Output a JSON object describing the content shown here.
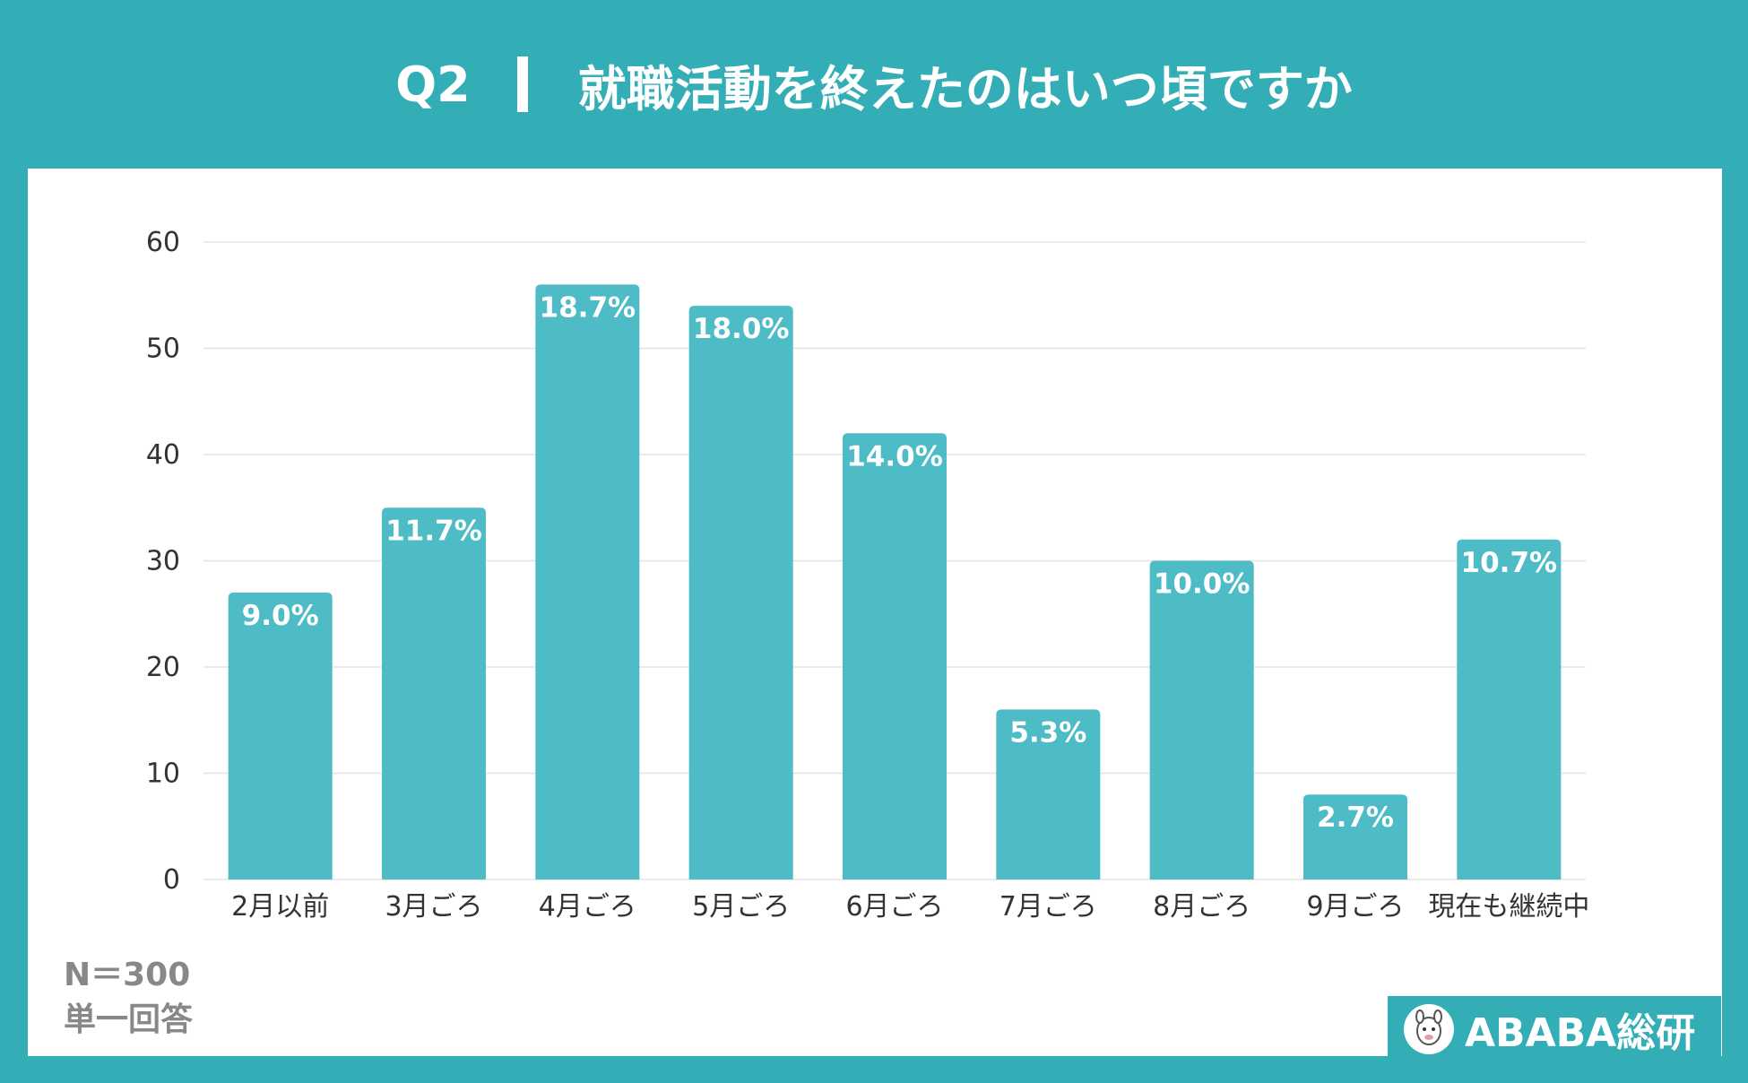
{
  "header": {
    "q_label": "Q2",
    "title": "就職活動を終えたのはいつ頃ですか"
  },
  "notes": {
    "n": "N＝300",
    "type": "単一回答"
  },
  "logo": {
    "text": "ABABA総研",
    "icon": "alpaca-icon"
  },
  "colors": {
    "background": "#34AEB6",
    "bar": "#4DBCC6",
    "grid": "#E3E3E3"
  },
  "chart_data": {
    "type": "bar",
    "categories": [
      "2月以前",
      "3月ごろ",
      "4月ごろ",
      "5月ごろ",
      "6月ごろ",
      "7月ごろ",
      "8月ごろ",
      "9月ごろ",
      "現在も継続中"
    ],
    "values": [
      27,
      35,
      56,
      54,
      42,
      16,
      30,
      8,
      32
    ],
    "labels": [
      "9.0%",
      "11.7%",
      "18.7%",
      "18.0%",
      "14.0%",
      "5.3%",
      "10.0%",
      "2.7%",
      "10.7%"
    ],
    "yticks": [
      0,
      10,
      20,
      30,
      40,
      50,
      60
    ],
    "ylim": [
      0,
      60
    ],
    "grid": true
  }
}
